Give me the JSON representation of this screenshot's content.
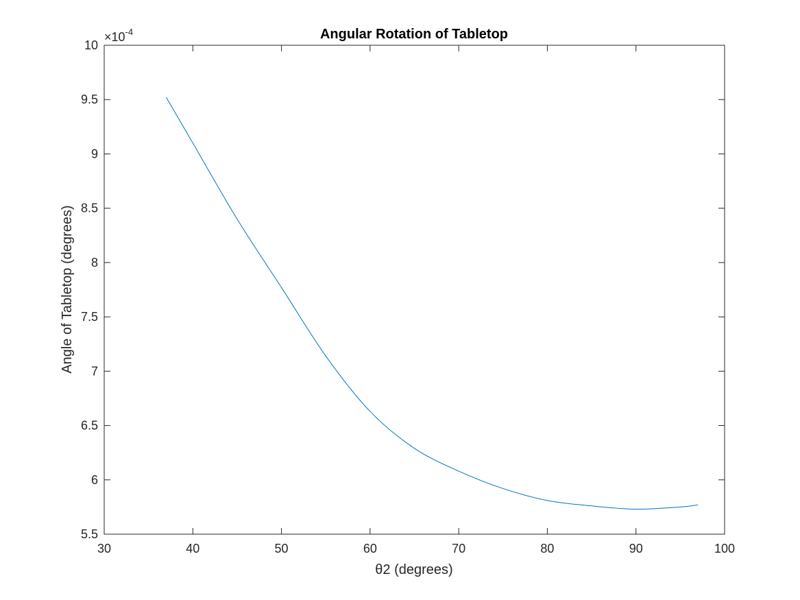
{
  "chart_data": {
    "type": "line",
    "title": "Angular Rotation of Tabletop",
    "xlabel": "θ2 (degrees)",
    "ylabel": "Angle of Tabletop (degrees)",
    "y_exponent_label": {
      "base": "×10",
      "exponent": "-4"
    },
    "xlim": [
      30,
      100
    ],
    "ylim": [
      5.5,
      10
    ],
    "x_ticks": [
      30,
      40,
      50,
      60,
      70,
      80,
      90,
      100
    ],
    "y_ticks": [
      5.5,
      6,
      6.5,
      7,
      7.5,
      8,
      8.5,
      9,
      9.5,
      10
    ],
    "x_tick_labels": [
      "30",
      "40",
      "50",
      "60",
      "70",
      "80",
      "90",
      "100"
    ],
    "y_tick_labels": [
      "5.5",
      "6",
      "6.5",
      "7",
      "7.5",
      "8",
      "8.5",
      "9",
      "9.5",
      "10"
    ],
    "grid": false,
    "box": true,
    "series": [
      {
        "color": "#0072BD",
        "x": [
          37,
          40,
          45,
          50,
          55,
          60,
          65,
          70,
          75,
          80,
          85,
          90,
          95,
          97
        ],
        "y": [
          9.52,
          9.1,
          8.4,
          7.77,
          7.14,
          6.63,
          6.29,
          6.08,
          5.92,
          5.81,
          5.76,
          5.73,
          5.75,
          5.77
        ]
      }
    ]
  }
}
